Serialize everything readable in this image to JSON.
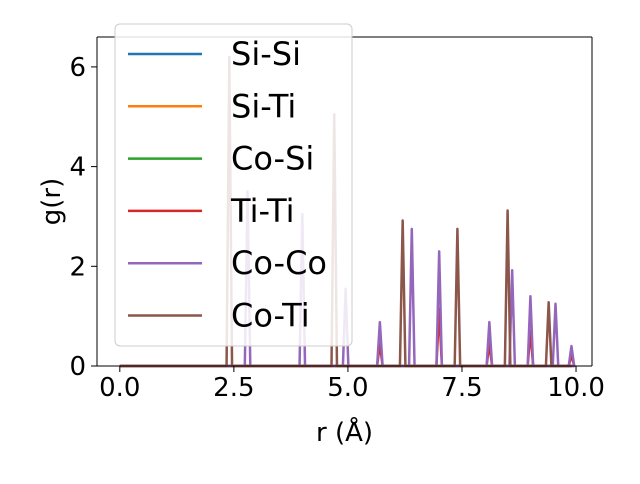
{
  "chart_data": {
    "type": "line",
    "title": "",
    "xlabel": "r (Å)",
    "ylabel": "g(r)",
    "xlim": [
      -0.5,
      10.35
    ],
    "ylim": [
      0,
      6.6
    ],
    "xticks": [
      0.0,
      2.5,
      5.0,
      7.5,
      10.0
    ],
    "xtick_labels": [
      "0.0",
      "2.5",
      "5.0",
      "7.5",
      "10.0"
    ],
    "yticks": [
      0,
      2,
      4,
      6
    ],
    "ytick_labels": [
      "0",
      "2",
      "4",
      "6"
    ],
    "grid": false,
    "legend_position": "top-left",
    "series": [
      {
        "name": "Si-Si",
        "color": "#1f77b4",
        "peaks": []
      },
      {
        "name": "Si-Ti",
        "color": "#ff7f0e",
        "peaks": []
      },
      {
        "name": "Co-Si",
        "color": "#2ca02c",
        "peaks": []
      },
      {
        "name": "Ti-Ti",
        "color": "#d62728",
        "peaks": [
          [
            5.7,
            0.45
          ],
          [
            7.0,
            1.15
          ],
          [
            8.1,
            0.45
          ],
          [
            9.0,
            0.7
          ],
          [
            9.9,
            0.22
          ]
        ]
      },
      {
        "name": "Co-Co",
        "color": "#9467bd",
        "peaks": [
          [
            2.8,
            3.5
          ],
          [
            4.0,
            3.05
          ],
          [
            4.95,
            1.55
          ],
          [
            5.7,
            0.88
          ],
          [
            6.4,
            2.75
          ],
          [
            7.0,
            2.3
          ],
          [
            8.1,
            0.88
          ],
          [
            8.6,
            1.92
          ],
          [
            9.0,
            1.4
          ],
          [
            9.55,
            1.25
          ],
          [
            9.9,
            0.4
          ]
        ]
      },
      {
        "name": "Co-Ti",
        "color": "#8c564b",
        "peaks": [
          [
            2.4,
            6.2
          ],
          [
            4.7,
            5.05
          ],
          [
            6.2,
            2.92
          ],
          [
            7.4,
            2.75
          ],
          [
            8.5,
            3.12
          ],
          [
            9.4,
            1.28
          ]
        ]
      }
    ]
  }
}
